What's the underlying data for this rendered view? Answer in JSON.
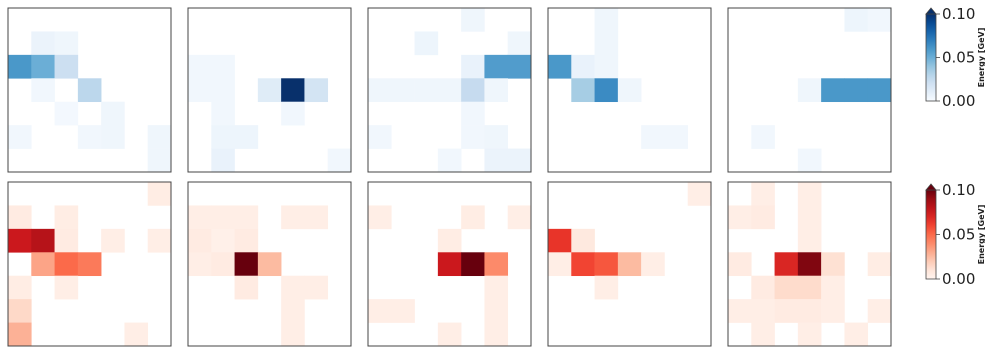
{
  "chart_data": {
    "type": "heatmap",
    "grid_size": 7,
    "rows": [
      {
        "name": "",
        "cmap": "blues",
        "colorbar": {
          "label": "Energy [GeV]",
          "ticks": [
            "0.00",
            "0.05",
            "0.10"
          ],
          "range": [
            0,
            0.1
          ]
        },
        "panels": [
          [
            [
              0,
              0,
              0,
              0,
              0,
              0,
              0
            ],
            [
              0,
              0.006,
              0.004,
              0,
              0,
              0,
              0
            ],
            [
              0.06,
              0.05,
              0.022,
              0,
              0,
              0,
              0
            ],
            [
              0,
              0.003,
              0,
              0.028,
              0,
              0,
              0
            ],
            [
              0,
              0,
              0.002,
              0,
              0.004,
              0,
              0
            ],
            [
              0.003,
              0,
              0,
              0.003,
              0.004,
              0,
              0.004
            ],
            [
              0,
              0,
              0,
              0,
              0,
              0,
              0.004
            ]
          ],
          [
            [
              0,
              0,
              0,
              0,
              0,
              0,
              0
            ],
            [
              0,
              0,
              0,
              0,
              0,
              0,
              0
            ],
            [
              0.003,
              0.003,
              0,
              0,
              0,
              0,
              0
            ],
            [
              0.003,
              0.003,
              0,
              0.012,
              0.1,
              0.018,
              0
            ],
            [
              0,
              0.003,
              0,
              0,
              0.003,
              0,
              0
            ],
            [
              0,
              0.005,
              0.005,
              0,
              0,
              0,
              0
            ],
            [
              0,
              0.007,
              0,
              0,
              0,
              0,
              0.003
            ]
          ],
          [
            [
              0,
              0,
              0,
              0,
              0.004,
              0,
              0
            ],
            [
              0,
              0,
              0.005,
              0,
              0,
              0,
              0.004
            ],
            [
              0,
              0,
              0,
              0,
              0.007,
              0.058,
              0.058
            ],
            [
              0.004,
              0.004,
              0.004,
              0.004,
              0.025,
              0.004,
              0
            ],
            [
              0,
              0,
              0,
              0,
              0.003,
              0,
              0
            ],
            [
              0.003,
              0,
              0,
              0,
              0.003,
              0.004,
              0
            ],
            [
              0,
              0,
              0,
              0.003,
              0,
              0.006,
              0.006
            ]
          ],
          [
            [
              0,
              0,
              0.004,
              0,
              0,
              0,
              0
            ],
            [
              0,
              0,
              0.004,
              0,
              0,
              0,
              0
            ],
            [
              0.06,
              0.007,
              0.004,
              0,
              0,
              0,
              0
            ],
            [
              0,
              0.035,
              0.065,
              0.004,
              0,
              0,
              0
            ],
            [
              0,
              0,
              0,
              0,
              0,
              0,
              0
            ],
            [
              0,
              0,
              0,
              0,
              0.003,
              0.003,
              0
            ],
            [
              0,
              0,
              0,
              0,
              0,
              0,
              0
            ]
          ],
          [
            [
              0,
              0,
              0,
              0,
              0,
              0.005,
              0.003
            ],
            [
              0,
              0,
              0,
              0,
              0,
              0,
              0
            ],
            [
              0,
              0,
              0,
              0,
              0,
              0,
              0
            ],
            [
              0,
              0,
              0,
              0.004,
              0.06,
              0.06,
              0.06
            ],
            [
              0,
              0,
              0,
              0,
              0,
              0,
              0
            ],
            [
              0,
              0.003,
              0,
              0,
              0,
              0,
              0
            ],
            [
              0,
              0,
              0,
              0.003,
              0,
              0,
              0
            ]
          ]
        ]
      },
      {
        "name": "",
        "cmap": "reds",
        "colorbar": {
          "label": "Energy [GeV]",
          "ticks": [
            "0.00",
            "0.05",
            "0.10"
          ],
          "range": [
            0,
            0.1
          ]
        },
        "panels": [
          [
            [
              0,
              0,
              0,
              0,
              0,
              0,
              0.005
            ],
            [
              0.006,
              0,
              0.005,
              0,
              0,
              0,
              0
            ],
            [
              0.075,
              0.082,
              0.006,
              0,
              0.004,
              0,
              0.004
            ],
            [
              0,
              0.032,
              0.05,
              0.045,
              0,
              0,
              0
            ],
            [
              0.005,
              0,
              0.004,
              0,
              0,
              0,
              0
            ],
            [
              0.015,
              0,
              0,
              0,
              0,
              0,
              0
            ],
            [
              0.028,
              0,
              0,
              0,
              0,
              0.004,
              0
            ]
          ],
          [
            [
              0,
              0,
              0,
              0,
              0,
              0,
              0
            ],
            [
              0.004,
              0.004,
              0.004,
              0,
              0.004,
              0.004,
              0
            ],
            [
              0.006,
              0.003,
              0.006,
              0,
              0,
              0,
              0
            ],
            [
              0.004,
              0.006,
              0.1,
              0.025,
              0,
              0,
              0
            ],
            [
              0,
              0,
              0.006,
              0,
              0.004,
              0.004,
              0
            ],
            [
              0,
              0,
              0,
              0,
              0.004,
              0,
              0
            ],
            [
              0,
              0,
              0,
              0,
              0.004,
              0,
              0
            ]
          ],
          [
            [
              0,
              0,
              0,
              0,
              0,
              0,
              0
            ],
            [
              0.004,
              0,
              0,
              0,
              0.005,
              0,
              0.004
            ],
            [
              0,
              0,
              0,
              0.005,
              0,
              0,
              0
            ],
            [
              0,
              0,
              0,
              0.075,
              0.1,
              0.04,
              0
            ],
            [
              0,
              0,
              0,
              0,
              0,
              0.004,
              0
            ],
            [
              0.004,
              0.004,
              0,
              0,
              0,
              0.004,
              0
            ],
            [
              0,
              0,
              0,
              0.004,
              0,
              0.004,
              0
            ]
          ],
          [
            [
              0,
              0,
              0,
              0,
              0,
              0,
              0.004
            ],
            [
              0,
              0,
              0,
              0,
              0,
              0,
              0
            ],
            [
              0.065,
              0.007,
              0,
              0,
              0,
              0,
              0
            ],
            [
              0.004,
              0.06,
              0.055,
              0.025,
              0.004,
              0,
              0
            ],
            [
              0,
              0,
              0.004,
              0,
              0,
              0,
              0
            ],
            [
              0,
              0,
              0,
              0,
              0,
              0,
              0
            ],
            [
              0,
              0,
              0,
              0,
              0,
              0,
              0
            ]
          ],
          [
            [
              0,
              0.004,
              0,
              0.004,
              0,
              0,
              0
            ],
            [
              0.004,
              0.006,
              0,
              0.004,
              0,
              0,
              0
            ],
            [
              0,
              0,
              0,
              0.004,
              0,
              0,
              0
            ],
            [
              0.006,
              0,
              0.07,
              0.095,
              0.012,
              0,
              0.005
            ],
            [
              0,
              0.006,
              0.014,
              0.014,
              0.004,
              0,
              0
            ],
            [
              0.004,
              0.004,
              0.006,
              0.006,
              0.004,
              0,
              0.004
            ],
            [
              0,
              0.004,
              0,
              0.004,
              0,
              0.004,
              0
            ]
          ]
        ]
      }
    ]
  }
}
